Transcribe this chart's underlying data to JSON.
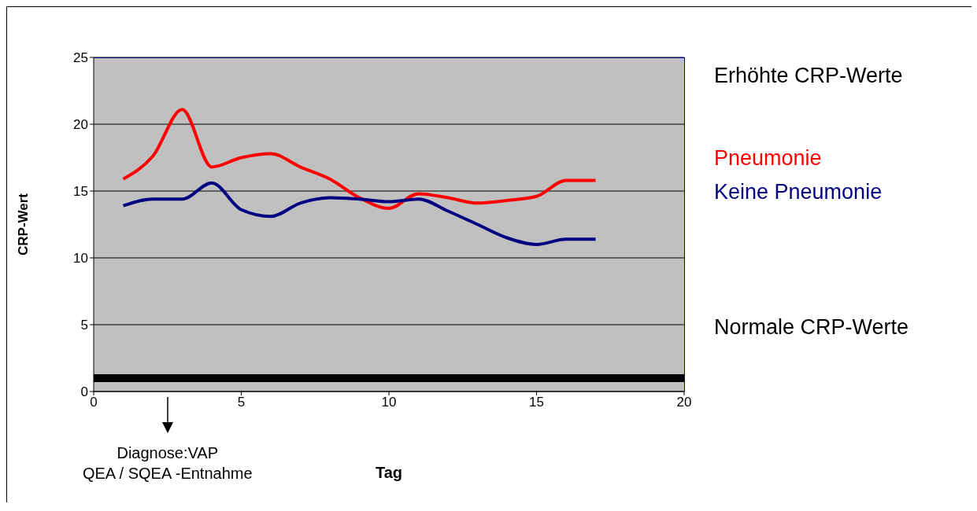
{
  "chart_data": {
    "type": "line",
    "xlabel": "Tag",
    "ylabel": "CRP-Wert",
    "x": [
      1,
      2,
      3,
      4,
      5,
      6,
      7,
      8,
      9,
      10,
      11,
      12,
      13,
      14,
      15,
      16,
      17
    ],
    "series": [
      {
        "name": "Pneumonie",
        "color": "#ff0000",
        "values": [
          15.9,
          17.6,
          21.1,
          16.8,
          17.5,
          17.8,
          16.8,
          15.9,
          14.5,
          13.7,
          14.8,
          14.5,
          14.1,
          14.3,
          14.6,
          15.8,
          15.8
        ]
      },
      {
        "name": "Keine Pneumonie",
        "color": "#000080",
        "values": [
          13.9,
          14.4,
          14.4,
          15.6,
          13.6,
          13.1,
          14.1,
          14.5,
          14.4,
          14.2,
          14.4,
          13.5,
          12.5,
          11.5,
          11.0,
          11.4,
          11.4
        ]
      }
    ],
    "xlim": [
      0,
      20
    ],
    "xticks": [
      0,
      5,
      10,
      15,
      20
    ],
    "ylim": [
      0,
      25
    ],
    "yticks": [
      0,
      5,
      10,
      15,
      20,
      25
    ],
    "grid": "y",
    "legend": "right",
    "marker": "none",
    "line_style": "solid",
    "ref_lines": [
      {
        "axis": "y",
        "value": 1,
        "color": "#000000"
      }
    ],
    "annotations": [
      "Erhöhte CRP-Werte",
      "Normale CRP-Werte",
      "Diagnose:VAP\nQEA / SQEA -Entnahme"
    ]
  }
}
